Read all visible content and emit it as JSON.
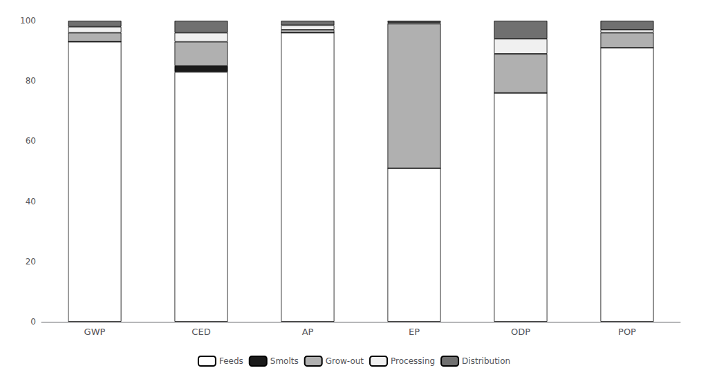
{
  "chart_data": {
    "type": "bar",
    "stacked": true,
    "categories": [
      "GWP",
      "CED",
      "AP",
      "EP",
      "ODP",
      "POP"
    ],
    "series": [
      {
        "name": "Feeds",
        "color": "#ffffff",
        "values": [
          93,
          83,
          96,
          51,
          76,
          91
        ]
      },
      {
        "name": "Smolts",
        "color": "#1a1a1a",
        "values": [
          0,
          2,
          0,
          0,
          0,
          0
        ]
      },
      {
        "name": "Grow-out",
        "color": "#b0b0b0",
        "values": [
          3,
          8,
          1,
          48,
          13,
          5
        ]
      },
      {
        "name": "Processing",
        "color": "#f0f0f0",
        "values": [
          2,
          3,
          1.5,
          0.5,
          5,
          1
        ]
      },
      {
        "name": "Distribution",
        "color": "#707070",
        "values": [
          2,
          4,
          1.5,
          0.5,
          6,
          3
        ]
      }
    ],
    "ylim": [
      0,
      100
    ],
    "yticks": [
      0,
      20,
      40,
      60,
      80,
      100
    ],
    "grid": false,
    "legend": "bottom"
  }
}
